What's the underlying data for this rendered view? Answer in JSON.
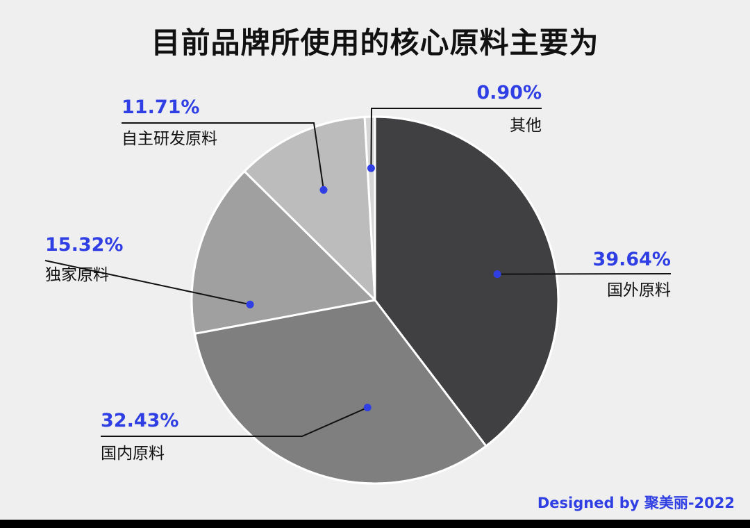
{
  "chart_data": {
    "type": "pie",
    "title": "目前品牌所使用的核心原料主要为",
    "slices": [
      {
        "label": "国外原料",
        "value": 39.64,
        "value_text": "39.64%",
        "color": "#404042"
      },
      {
        "label": "国内原料",
        "value": 32.43,
        "value_text": "32.43%",
        "color": "#7f7f7f"
      },
      {
        "label": "独家原料",
        "value": 15.32,
        "value_text": "15.32%",
        "color": "#a0a0a0"
      },
      {
        "label": "自主研发原料",
        "value": 11.71,
        "value_text": "11.71%",
        "color": "#bcbcbc"
      },
      {
        "label": "其他",
        "value": 0.9,
        "value_text": "0.90%",
        "color": "#d6d6d6"
      }
    ],
    "start_angle_deg": 0,
    "direction": "clockwise",
    "legend": "none",
    "label_color": "#2f3fe3"
  },
  "footer": {
    "credit": "Designed by 聚美丽-2022"
  }
}
